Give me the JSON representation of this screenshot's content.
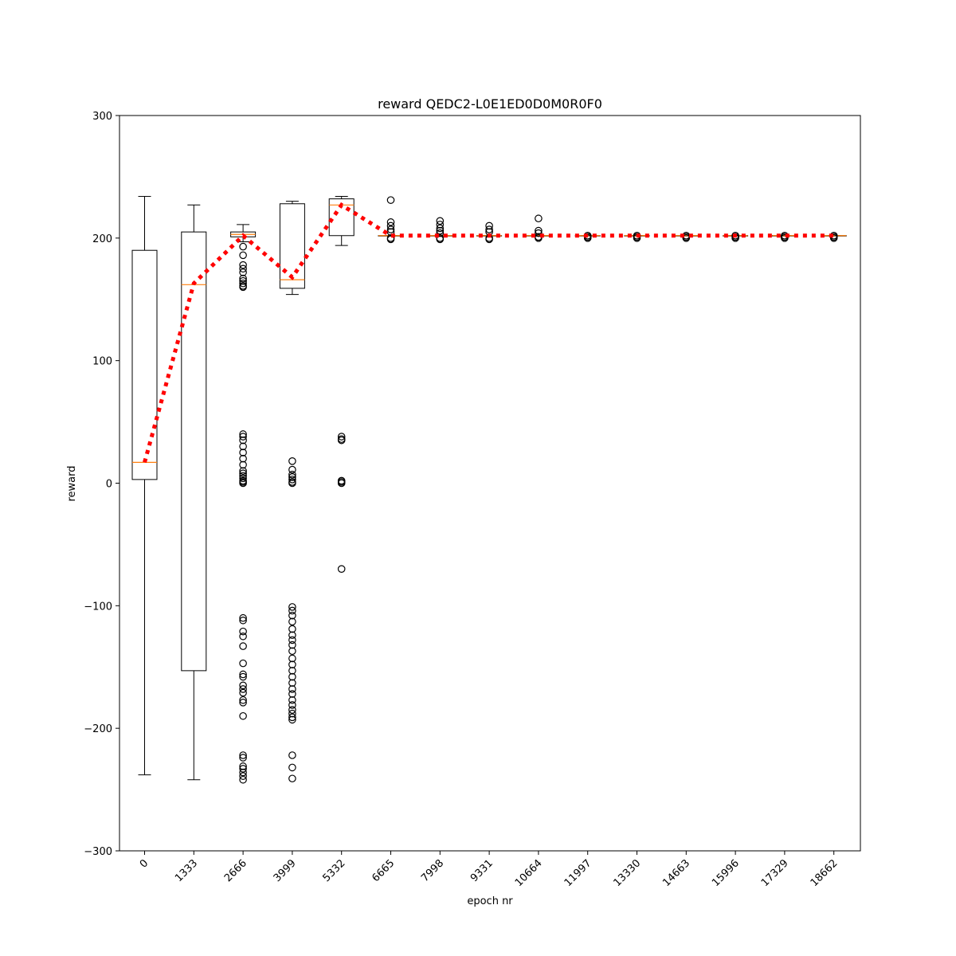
{
  "chart_data": {
    "type": "box",
    "title": "reward QEDC2-L0E1ED0D0M0R0F0",
    "xlabel": "epoch nr",
    "ylabel": "reward",
    "ylim": [
      -300,
      300
    ],
    "yticks": [
      -300,
      -200,
      -100,
      0,
      100,
      200,
      300
    ],
    "ytick_labels": [
      "−300",
      "−200",
      "−100",
      "0",
      "100",
      "200",
      "300"
    ],
    "categories": [
      "0",
      "1333",
      "2666",
      "3999",
      "5332",
      "6665",
      "7998",
      "9331",
      "10664",
      "11997",
      "13330",
      "14663",
      "15996",
      "17329",
      "18662"
    ],
    "boxes": [
      {
        "q1": 3,
        "median": 17,
        "q3": 190,
        "whisker_low": -238,
        "whisker_high": 234,
        "fliers": []
      },
      {
        "q1": -153,
        "median": 162,
        "q3": 205,
        "whisker_low": -242,
        "whisker_high": 227,
        "fliers": []
      },
      {
        "q1": 201,
        "median": 203,
        "q3": 205,
        "whisker_low": 197,
        "whisker_high": 211,
        "fliers": [
          193,
          186,
          178,
          175,
          172,
          167,
          165,
          163,
          161,
          160,
          40,
          38,
          35,
          30,
          25,
          20,
          15,
          10,
          8,
          6,
          4,
          2,
          1,
          0,
          -110,
          -112,
          -121,
          -125,
          -133,
          -147,
          -156,
          -158,
          -165,
          -168,
          -171,
          -177,
          -179,
          -190,
          -222,
          -224,
          -231,
          -233,
          -236,
          -239,
          -242
        ]
      },
      {
        "q1": 159,
        "median": 166,
        "q3": 228,
        "whisker_low": 154,
        "whisker_high": 230,
        "fliers": [
          18,
          11,
          7,
          5,
          3,
          1,
          0,
          -101,
          -104,
          -108,
          -113,
          -119,
          -124,
          -128,
          -132,
          -137,
          -143,
          -148,
          -153,
          -158,
          -163,
          -168,
          -172,
          -177,
          -181,
          -185,
          -188,
          -191,
          -193,
          -222,
          -232,
          -241
        ]
      },
      {
        "q1": 202,
        "median": 227,
        "q3": 232,
        "whisker_low": 194,
        "whisker_high": 234,
        "fliers": [
          38,
          36,
          35,
          2,
          1,
          0,
          -70
        ]
      },
      {
        "q1": 202,
        "median": 202,
        "q3": 202,
        "whisker_low": 202,
        "whisker_high": 202,
        "fliers": [
          231,
          213,
          210,
          207,
          205,
          200,
          199
        ]
      },
      {
        "q1": 202,
        "median": 202,
        "q3": 202,
        "whisker_low": 202,
        "whisker_high": 202,
        "fliers": [
          214,
          211,
          208,
          206,
          204,
          200,
          199
        ]
      },
      {
        "q1": 202,
        "median": 202,
        "q3": 202,
        "whisker_low": 202,
        "whisker_high": 202,
        "fliers": [
          210,
          207,
          205,
          200,
          199
        ]
      },
      {
        "q1": 202,
        "median": 202,
        "q3": 202,
        "whisker_low": 202,
        "whisker_high": 202,
        "fliers": [
          216,
          206,
          204,
          201,
          200
        ]
      },
      {
        "q1": 202,
        "median": 202,
        "q3": 202,
        "whisker_low": 202,
        "whisker_high": 202,
        "fliers": [
          202,
          201,
          200
        ]
      },
      {
        "q1": 202,
        "median": 202,
        "q3": 202,
        "whisker_low": 202,
        "whisker_high": 202,
        "fliers": [
          202,
          201,
          200
        ]
      },
      {
        "q1": 202,
        "median": 202,
        "q3": 202,
        "whisker_low": 202,
        "whisker_high": 202,
        "fliers": [
          202,
          201,
          200
        ]
      },
      {
        "q1": 202,
        "median": 202,
        "q3": 202,
        "whisker_low": 202,
        "whisker_high": 202,
        "fliers": [
          202,
          201,
          200
        ]
      },
      {
        "q1": 202,
        "median": 202,
        "q3": 202,
        "whisker_low": 202,
        "whisker_high": 202,
        "fliers": [
          202,
          201,
          200
        ]
      },
      {
        "q1": 202,
        "median": 202,
        "q3": 202,
        "whisker_low": 202,
        "whisker_high": 202,
        "fliers": [
          202,
          201,
          200
        ]
      }
    ],
    "mean_line": {
      "values": [
        17,
        163,
        202,
        168,
        227,
        202,
        202,
        202,
        202,
        202,
        202,
        202,
        202,
        202,
        202
      ],
      "color": "#ff0000",
      "style": "dotted"
    },
    "colors": {
      "box": "#000000",
      "median": "#ff7f0e",
      "flier": "#000000"
    },
    "grid": false
  }
}
